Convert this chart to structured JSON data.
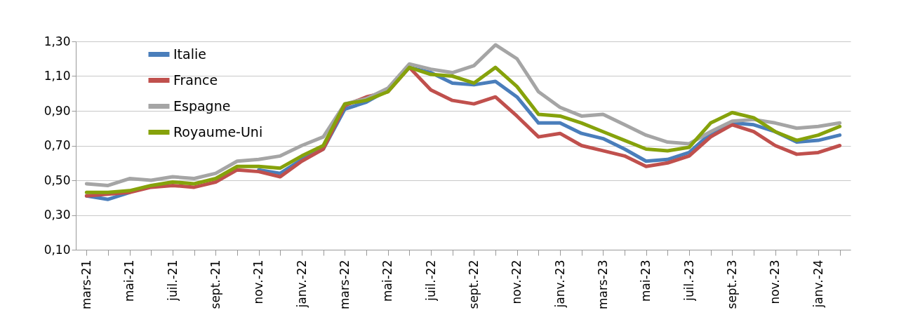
{
  "chart_data": {
    "type": "line",
    "categories": [
      "mars-21",
      null,
      "mai-21",
      null,
      "juil.-21",
      null,
      "sept.-21",
      null,
      "nov.-21",
      null,
      "janv.-22",
      null,
      "mars-22",
      null,
      "mai-22",
      null,
      "juil.-22",
      null,
      "sept.-22",
      null,
      "nov.-22",
      null,
      "janv.-23",
      null,
      "mars-23",
      null,
      "mai-23",
      null,
      "juil.-23",
      null,
      "sept.-23",
      null,
      "nov.-23",
      null,
      "janv.-24",
      null
    ],
    "series": [
      {
        "name": "Italie",
        "color": "#4a7ebb",
        "values": [
          0.41,
          0.39,
          0.43,
          null,
          null,
          null,
          null,
          null,
          0.56,
          0.54,
          0.62,
          0.68,
          0.91,
          0.95,
          1.02,
          1.15,
          1.12,
          1.06,
          1.05,
          1.07,
          0.98,
          0.83,
          0.83,
          0.77,
          0.74,
          0.68,
          0.61,
          0.62,
          0.66,
          0.77,
          0.83,
          0.82,
          0.78,
          0.72,
          0.73,
          0.76
        ]
      },
      {
        "name": "France",
        "color": "#c0504d",
        "values": [
          0.41,
          0.42,
          0.43,
          0.46,
          0.47,
          0.46,
          0.49,
          0.56,
          0.55,
          0.52,
          0.61,
          0.68,
          0.93,
          0.98,
          1.01,
          1.15,
          1.02,
          0.96,
          0.94,
          0.98,
          0.87,
          0.75,
          0.77,
          0.7,
          0.67,
          0.64,
          0.58,
          0.6,
          0.64,
          0.75,
          0.82,
          0.78,
          0.7,
          0.65,
          0.66,
          0.7
        ]
      },
      {
        "name": "Espagne",
        "color": "#a5a5a5",
        "values": [
          0.48,
          0.47,
          0.51,
          0.5,
          0.52,
          0.51,
          0.54,
          0.61,
          0.62,
          0.64,
          0.7,
          0.75,
          0.94,
          0.97,
          1.03,
          1.17,
          1.14,
          1.12,
          1.16,
          1.28,
          1.2,
          1.01,
          0.92,
          0.87,
          0.88,
          0.82,
          0.76,
          0.72,
          0.71,
          0.78,
          0.84,
          0.85,
          0.83,
          0.8,
          0.81,
          0.83
        ]
      },
      {
        "name": "Royaume-Uni",
        "color": "#86a20b",
        "values": [
          0.43,
          0.43,
          0.44,
          0.47,
          0.49,
          0.48,
          0.51,
          0.58,
          0.58,
          0.57,
          0.64,
          0.7,
          0.94,
          0.96,
          1.01,
          1.15,
          1.11,
          1.1,
          1.06,
          1.15,
          1.04,
          0.88,
          0.87,
          0.83,
          0.78,
          0.73,
          0.68,
          0.67,
          0.69,
          0.83,
          0.89,
          0.86,
          0.78,
          0.73,
          0.76,
          0.81
        ]
      }
    ],
    "ylim": [
      0.1,
      1.3
    ],
    "yticks": [
      {
        "value": 0.1,
        "label": "0,10"
      },
      {
        "value": 0.3,
        "label": "0,30"
      },
      {
        "value": 0.5,
        "label": "0,50"
      },
      {
        "value": 0.7,
        "label": "0,70"
      },
      {
        "value": 0.9,
        "label": "0,90"
      },
      {
        "value": 1.1,
        "label": "1,10"
      },
      {
        "value": 1.3,
        "label": "1,30"
      }
    ],
    "grid": "y",
    "legend": "top left",
    "line_style": "solid"
  }
}
